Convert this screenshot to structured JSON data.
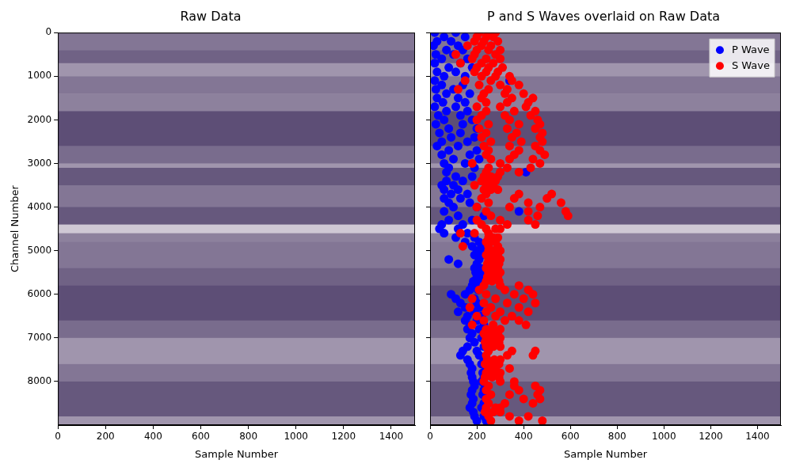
{
  "chart_data": [
    {
      "type": "heatmap",
      "title": "Raw Data",
      "x_label": "Sample Number",
      "y_label": "Channel Number",
      "xlim": [
        0,
        1500
      ],
      "xticks": [
        0,
        200,
        400,
        600,
        800,
        1000,
        1200,
        1400
      ],
      "ylim": [
        9000,
        0
      ],
      "yticks": [
        0,
        1000,
        2000,
        3000,
        4000,
        5000,
        6000,
        7000,
        8000
      ],
      "grid": false,
      "cells": {
        "channel_edges": [
          0,
          400,
          700,
          1000,
          1400,
          1800,
          2600,
          3000,
          3100,
          3500,
          4000,
          4400,
          4600,
          4800,
          5400,
          5800,
          6600,
          7000,
          7600,
          8000,
          8800,
          9000
        ],
        "values": [
          0.45,
          0.35,
          0.6,
          0.45,
          0.5,
          0.25,
          0.4,
          0.6,
          0.3,
          0.45,
          0.3,
          0.85,
          0.5,
          0.45,
          0.35,
          0.25,
          0.4,
          0.6,
          0.45,
          0.3,
          0.6
        ]
      }
    },
    {
      "type": "scatter",
      "title": "P and S Waves overlaid on Raw Data",
      "x_label": "Sample Number",
      "xlim": [
        0,
        1500
      ],
      "xticks": [
        0,
        200,
        400,
        600,
        800,
        1000,
        1200,
        1400
      ],
      "ylim": [
        9000,
        0
      ],
      "yticks": [
        0,
        1000,
        2000,
        3000,
        4000,
        5000,
        6000,
        7000,
        8000
      ],
      "grid": false,
      "legend": "upper right",
      "tick_labels": "x",
      "marker": "circle",
      "cells": {
        "channel_edges": [
          0,
          400,
          700,
          1000,
          1400,
          1800,
          2600,
          3000,
          3100,
          3500,
          4000,
          4400,
          4600,
          4800,
          5400,
          5800,
          6600,
          7000,
          7600,
          8000,
          8800,
          9000
        ],
        "values": [
          0.45,
          0.35,
          0.6,
          0.45,
          0.5,
          0.25,
          0.4,
          0.6,
          0.3,
          0.45,
          0.3,
          0.85,
          0.5,
          0.45,
          0.35,
          0.25,
          0.4,
          0.6,
          0.45,
          0.3,
          0.6
        ]
      },
      "series": [
        {
          "name": "P Wave",
          "color": "#0000ff",
          "x": [
            20,
            110,
            60,
            150,
            30,
            90,
            15,
            120,
            70,
            140,
            25,
            100,
            50,
            160,
            20,
            130,
            80,
            180,
            30,
            110,
            60,
            150,
            20,
            340,
            50,
            140,
            25,
            100,
            70,
            170,
            30,
            120,
            55,
            150,
            20,
            110,
            70,
            160,
            35,
            130,
            60,
            180,
            25,
            140,
            80,
            200,
            40,
            130,
            90,
            190,
            50,
            160,
            30,
            120,
            80,
            200,
            50,
            170,
            100,
            210,
            60,
            150,
            80,
            190,
            70,
            410,
            110,
            180,
            70,
            140,
            50,
            100,
            60,
            120,
            90,
            160,
            60,
            130,
            80,
            170,
            100,
            200,
            60,
            380,
            120,
            230,
            80,
            180,
            50,
            140,
            40,
            120,
            60,
            160,
            110,
            190,
            150,
            210,
            180,
            220,
            200,
            230,
            190,
            220,
            80,
            210,
            120,
            200,
            190,
            215,
            195,
            225,
            200,
            230,
            185,
            215,
            180,
            210,
            170,
            205,
            90,
            150,
            110,
            190,
            130,
            200,
            150,
            210,
            120,
            190,
            160,
            220,
            150,
            200,
            170,
            230,
            160,
            210,
            180,
            240,
            170,
            220,
            190,
            250,
            160,
            230,
            140,
            200,
            130,
            210,
            160,
            230,
            170,
            220,
            180,
            240,
            175,
            225,
            180,
            230,
            185,
            220,
            190,
            235,
            180,
            230,
            175,
            225,
            185,
            240,
            180,
            230,
            170,
            220,
            185,
            235,
            190,
            230,
            200,
            240
          ],
          "values": [
            0,
            0,
            100,
            100,
            200,
            200,
            300,
            300,
            400,
            400,
            500,
            500,
            600,
            600,
            700,
            700,
            800,
            800,
            900,
            900,
            1000,
            1000,
            1100,
            1100,
            1200,
            1200,
            1300,
            1300,
            1400,
            1400,
            1500,
            1500,
            1600,
            1600,
            1700,
            1700,
            1800,
            1800,
            1900,
            1900,
            2000,
            2000,
            2100,
            2100,
            2200,
            2200,
            2300,
            2300,
            2400,
            2400,
            2500,
            2500,
            2600,
            2600,
            2700,
            2700,
            2800,
            2800,
            2900,
            2900,
            3000,
            3000,
            3100,
            3100,
            3200,
            3200,
            3300,
            3300,
            3400,
            3400,
            3500,
            3500,
            3600,
            3600,
            3700,
            3700,
            3800,
            3800,
            3900,
            3900,
            4000,
            4000,
            4100,
            4100,
            4200,
            4200,
            4300,
            4300,
            4400,
            4400,
            4500,
            4500,
            4600,
            4600,
            4700,
            4700,
            4800,
            4800,
            4900,
            4900,
            5000,
            5000,
            5100,
            5100,
            5200,
            5200,
            5300,
            5300,
            5400,
            5400,
            5500,
            5500,
            5600,
            5600,
            5700,
            5700,
            5800,
            5800,
            5900,
            5900,
            6000,
            6000,
            6100,
            6100,
            6200,
            6200,
            6300,
            6300,
            6400,
            6400,
            6500,
            6500,
            6600,
            6600,
            6700,
            6700,
            6800,
            6800,
            6900,
            6900,
            7000,
            7000,
            7100,
            7100,
            7200,
            7200,
            7300,
            7300,
            7400,
            7400,
            7500,
            7500,
            7600,
            7600,
            7700,
            7700,
            7800,
            7800,
            7900,
            7900,
            8000,
            8000,
            8100,
            8100,
            8200,
            8200,
            8300,
            8300,
            8400,
            8400,
            8500,
            8500,
            8600,
            8600,
            8700,
            8700,
            8800,
            8800,
            8900,
            8900
          ]
        },
        {
          "name": "S Wave",
          "color": "#ff0000",
          "x": [
            210,
            250,
            280,
            200,
            240,
            270,
            190,
            230,
            290,
            160,
            220,
            260,
            200,
            250,
            300,
            110,
            190,
            280,
            180,
            240,
            300,
            130,
            220,
            270,
            200,
            250,
            310,
            190,
            240,
            290,
            220,
            280,
            340,
            150,
            260,
            350,
            210,
            300,
            380,
            120,
            250,
            330,
            230,
            320,
            400,
            220,
            350,
            440,
            240,
            330,
            420,
            200,
            300,
            410,
            240,
            360,
            450,
            220,
            320,
            430,
            200,
            340,
            460,
            250,
            380,
            470,
            210,
            330,
            450,
            240,
            370,
            480,
            220,
            350,
            470,
            260,
            390,
            480,
            230,
            340,
            450,
            250,
            380,
            470,
            240,
            360,
            490,
            260,
            340,
            440,
            180,
            300,
            470,
            250,
            330,
            430,
            240,
            300,
            380,
            230,
            260,
            290,
            220,
            250,
            280,
            190,
            240,
            270,
            230,
            260,
            290,
            240,
            380,
            520,
            220,
            360,
            500,
            250,
            420,
            560,
            200,
            340,
            470,
            240,
            420,
            580,
            260,
            460,
            590,
            200,
            300,
            420,
            220,
            330,
            450,
            240,
            280,
            300,
            130,
            190,
            250,
            250,
            270,
            290,
            240,
            260,
            280,
            140,
            250,
            290,
            250,
            270,
            300,
            240,
            265,
            290,
            250,
            280,
            300,
            245,
            270,
            295,
            240,
            260,
            290,
            250,
            275,
            300,
            245,
            270,
            290,
            240,
            265,
            295,
            230,
            300,
            380,
            210,
            320,
            420,
            240,
            360,
            440,
            180,
            280,
            400,
            230,
            330,
            450,
            170,
            260,
            380,
            240,
            300,
            420,
            200,
            280,
            350,
            230,
            320,
            380,
            180,
            270,
            410,
            240,
            270,
            300,
            230,
            260,
            290,
            240,
            270,
            300,
            235,
            265,
            295,
            240,
            270,
            300,
            250,
            350,
            450,
            240,
            330,
            440,
            245,
            275,
            300,
            235,
            265,
            295,
            250,
            280,
            340,
            240,
            270,
            300,
            235,
            265,
            295,
            230,
            300,
            360,
            250,
            360,
            450,
            240,
            380,
            470,
            260,
            340,
            460,
            240,
            400,
            470,
            250,
            320,
            440,
            240,
            280,
            300,
            235,
            270,
            300,
            250,
            340,
            420,
            260,
            380,
            480
          ],
          "values": [
            0,
            0,
            0,
            100,
            100,
            100,
            200,
            200,
            200,
            300,
            300,
            300,
            400,
            400,
            400,
            500,
            500,
            500,
            600,
            600,
            600,
            700,
            700,
            700,
            800,
            800,
            800,
            900,
            900,
            900,
            1000,
            1000,
            1000,
            1100,
            1100,
            1100,
            1200,
            1200,
            1200,
            1300,
            1300,
            1300,
            1400,
            1400,
            1400,
            1500,
            1500,
            1500,
            1600,
            1600,
            1600,
            1700,
            1700,
            1700,
            1800,
            1800,
            1800,
            1900,
            1900,
            1900,
            2000,
            2000,
            2000,
            2100,
            2100,
            2100,
            2200,
            2200,
            2200,
            2300,
            2300,
            2300,
            2400,
            2400,
            2400,
            2500,
            2500,
            2500,
            2600,
            2600,
            2600,
            2700,
            2700,
            2700,
            2800,
            2800,
            2800,
            2900,
            2900,
            2900,
            3000,
            3000,
            3000,
            3100,
            3100,
            3100,
            3200,
            3200,
            3200,
            3300,
            3300,
            3300,
            3400,
            3400,
            3400,
            3500,
            3500,
            3500,
            3600,
            3600,
            3600,
            3700,
            3700,
            3700,
            3800,
            3800,
            3800,
            3900,
            3900,
            3900,
            4000,
            4000,
            4000,
            4100,
            4100,
            4100,
            4200,
            4200,
            4200,
            4300,
            4300,
            4300,
            4400,
            4400,
            4400,
            4500,
            4500,
            4500,
            4600,
            4600,
            4600,
            4700,
            4700,
            4700,
            4800,
            4800,
            4800,
            4900,
            4900,
            4900,
            5000,
            5000,
            5000,
            5100,
            5100,
            5100,
            5200,
            5200,
            5200,
            5300,
            5300,
            5300,
            5400,
            5400,
            5400,
            5500,
            5500,
            5500,
            5600,
            5600,
            5600,
            5700,
            5700,
            5700,
            5800,
            5800,
            5800,
            5900,
            5900,
            5900,
            6000,
            6000,
            6000,
            6100,
            6100,
            6100,
            6200,
            6200,
            6200,
            6300,
            6300,
            6300,
            6400,
            6400,
            6400,
            6500,
            6500,
            6500,
            6600,
            6600,
            6600,
            6700,
            6700,
            6700,
            6800,
            6800,
            6800,
            6900,
            6900,
            6900,
            7000,
            7000,
            7000,
            7100,
            7100,
            7100,
            7200,
            7200,
            7200,
            7300,
            7300,
            7300,
            7400,
            7400,
            7400,
            7500,
            7500,
            7500,
            7600,
            7600,
            7600,
            7700,
            7700,
            7700,
            7800,
            7800,
            7800,
            7900,
            7900,
            7900,
            8000,
            8000,
            8000,
            8100,
            8100,
            8100,
            8200,
            8200,
            8200,
            8300,
            8300,
            8300,
            8400,
            8400,
            8400,
            8500,
            8500,
            8500,
            8600,
            8600,
            8600,
            8700,
            8700,
            8700,
            8800,
            8800,
            8800,
            8900,
            8900,
            8900
          ]
        }
      ]
    }
  ]
}
